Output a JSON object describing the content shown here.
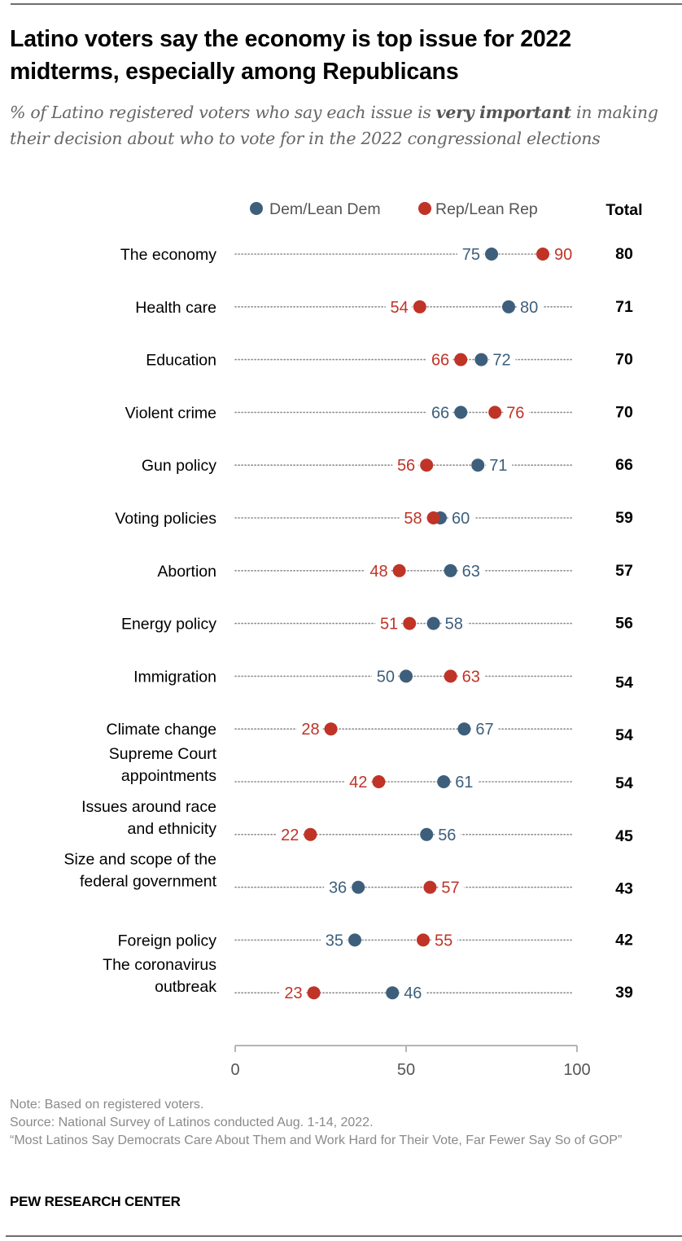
{
  "title": "Latino voters say the economy is top issue for 2022 midterms, especially among Republicans",
  "subtitle": {
    "before": "% of Latino registered voters who say each issue is ",
    "emphasis": "very important",
    "after": " in making their decision about who to vote for in the 2022 congressional elections"
  },
  "legend": {
    "dem": "Dem/Lean Dem",
    "rep": "Rep/Lean Rep",
    "total": "Total"
  },
  "colors": {
    "dem": "#3d5f7c",
    "rep": "#bf3427",
    "total": "#000000",
    "axis": "#b5b5b5",
    "dotted": "#8c8c8c"
  },
  "chart_data": {
    "type": "scatter",
    "subtype": "dot-plot",
    "title": "Latino voters say the economy is top issue for 2022 midterms, especially among Republicans",
    "xlabel": "",
    "ylabel": "",
    "xlim": [
      0,
      100
    ],
    "xticks": [
      0,
      50,
      100
    ],
    "grid": false,
    "legend_position": "top",
    "categories": [
      [
        "The economy"
      ],
      [
        "Health care"
      ],
      [
        "Education"
      ],
      [
        "Violent crime"
      ],
      [
        "Gun policy"
      ],
      [
        "Voting policies"
      ],
      [
        "Abortion"
      ],
      [
        "Energy policy"
      ],
      [
        "Immigration"
      ],
      [
        "Climate change"
      ],
      [
        "Supreme Court",
        "appointments"
      ],
      [
        "Issues around race",
        "and ethnicity"
      ],
      [
        "Size and scope of the",
        "federal government"
      ],
      [
        "Foreign policy"
      ],
      [
        "The coronavirus",
        "outbreak"
      ]
    ],
    "series": [
      {
        "name": "Dem/Lean Dem",
        "key": "dem",
        "values": [
          75,
          80,
          72,
          66,
          71,
          60,
          63,
          58,
          50,
          67,
          61,
          56,
          36,
          35,
          46
        ]
      },
      {
        "name": "Rep/Lean Rep",
        "key": "rep",
        "values": [
          90,
          54,
          66,
          76,
          56,
          58,
          48,
          51,
          63,
          28,
          42,
          22,
          57,
          55,
          23
        ]
      }
    ],
    "totals": {
      "name": "Total",
      "values": [
        80,
        71,
        70,
        70,
        66,
        59,
        57,
        56,
        54,
        54,
        54,
        45,
        43,
        42,
        39
      ]
    }
  },
  "notes": {
    "note": "Note: Based on registered voters.",
    "source": "Source: National Survey of Latinos conducted Aug. 1-14, 2022.",
    "report": "“Most Latinos Say Democrats Care About Them and Work Hard for Their Vote, Far Fewer Say So of GOP”"
  },
  "brand": "PEW RESEARCH CENTER"
}
